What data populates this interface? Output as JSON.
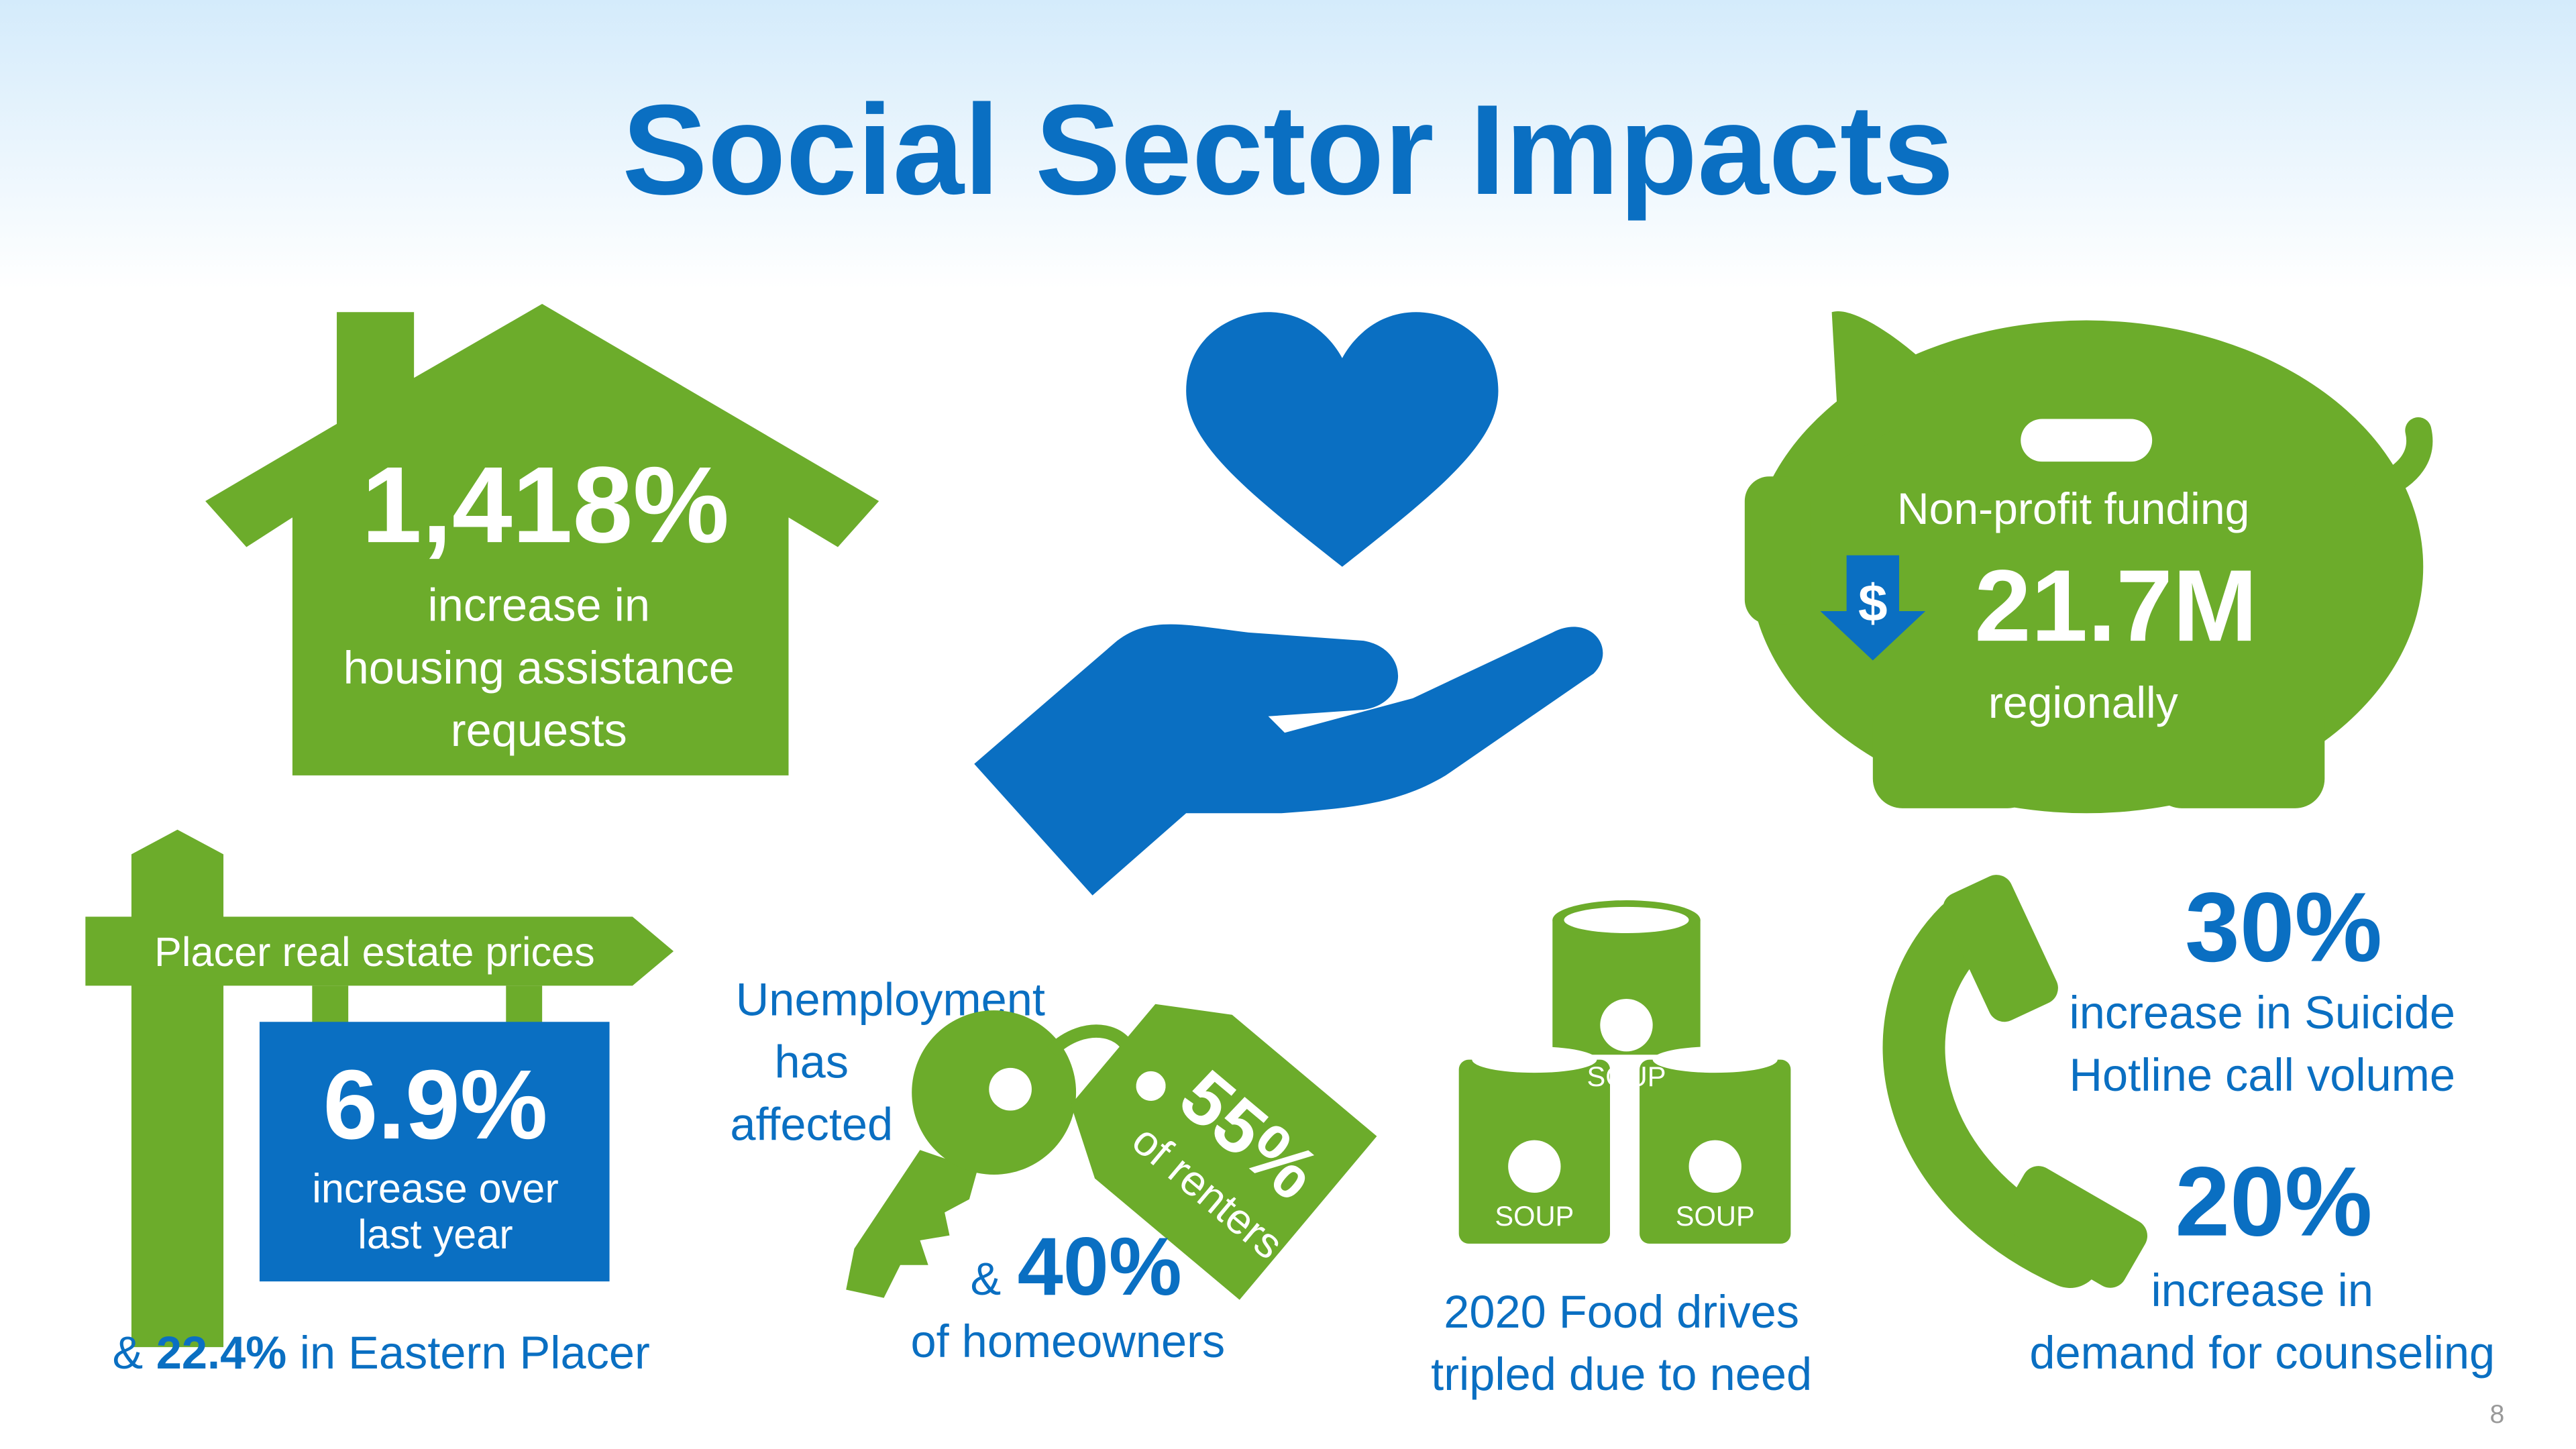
{
  "title": "Social Sector Impacts",
  "housing": {
    "stat": "1,418%",
    "lines": [
      "increase in",
      "housing assistance",
      "requests"
    ]
  },
  "funding": {
    "label": "Non-profit funding",
    "icon": "$",
    "stat": "21.7M",
    "note": "regionally"
  },
  "real_estate": {
    "sign": "Placer real estate prices",
    "stat": "6.9%",
    "lines": [
      "increase over",
      "last year"
    ],
    "footer": {
      "prefix": "&",
      "stat": "22.4%",
      "text": "in Eastern Placer"
    }
  },
  "unemployment": {
    "lines": [
      "Unemployment",
      "has",
      "affected"
    ],
    "tag": {
      "stat": "55%",
      "text": "of renters"
    },
    "prefix": "&",
    "stat": "40%",
    "text": "of homeowners"
  },
  "food": {
    "can_labels": [
      "SOUP",
      "SOUP",
      "SOUP"
    ],
    "lines": [
      "2020 Food drives",
      "tripled due to need"
    ]
  },
  "hotline": {
    "stat": "30%",
    "lines": [
      "increase in Suicide",
      "Hotline call volume"
    ]
  },
  "counseling": {
    "stat": "20%",
    "lines": [
      "increase in",
      "demand for counseling"
    ]
  },
  "page_number": "8"
}
